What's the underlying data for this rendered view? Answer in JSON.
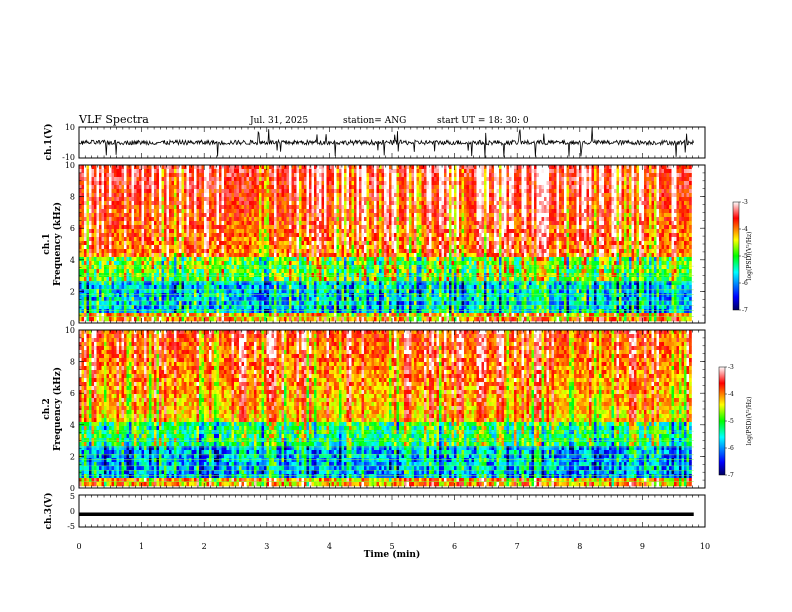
{
  "header": {
    "title": "VLF Spectra",
    "date": "Jul. 31, 2025",
    "station": "station= ANG",
    "start": "start UT = 18: 30: 0"
  },
  "chart_data": [
    {
      "type": "line",
      "name": "ch1-waveform",
      "ylabel": "ch.1(V)",
      "ylim": [
        -10,
        10
      ],
      "y_ticks": [
        "10",
        "-10"
      ],
      "baseline": 0,
      "description_values": "noisy voltage trace around 0 V with spikes to +/-10 V"
    },
    {
      "type": "heatmap",
      "name": "ch1-spectrogram",
      "ylabel_top": "ch.1",
      "ylabel": "Frequency (kHz)",
      "ylim": [
        0,
        10
      ],
      "y_ticks": [
        "0",
        "2",
        "4",
        "6",
        "8",
        "10"
      ],
      "colorbar": {
        "label": "log(PSD)(V²/Hz)",
        "range": [
          -7,
          -3
        ],
        "ticks": [
          "-3",
          "-4",
          "-5",
          "-6",
          "-7"
        ]
      }
    },
    {
      "type": "heatmap",
      "name": "ch2-spectrogram",
      "ylabel_top": "ch.2",
      "ylabel": "Frequency (kHz)",
      "ylim": [
        0,
        10
      ],
      "y_ticks": [
        "0",
        "2",
        "4",
        "6",
        "8",
        "10"
      ],
      "colorbar": {
        "label": "log(PSD)(V²/Hz)",
        "range": [
          -7,
          -3
        ],
        "ticks": [
          "-3",
          "-4",
          "-5",
          "-6",
          "-7"
        ]
      }
    },
    {
      "type": "line",
      "name": "ch3-waveform",
      "ylabel": "ch.3(V)",
      "ylim": [
        -5,
        5
      ],
      "y_ticks": [
        "5",
        "0",
        "-5"
      ],
      "constant_value": -1
    }
  ],
  "x_axis": {
    "label": "Time (min)",
    "range": [
      0,
      10
    ],
    "ticks": [
      "0",
      "1",
      "2",
      "3",
      "4",
      "5",
      "6",
      "7",
      "8",
      "9",
      "10"
    ],
    "data_end": 9.82
  },
  "colors": {
    "scale": [
      "#000060",
      "#0000ff",
      "#00ffff",
      "#00ff00",
      "#ffff00",
      "#ff0000",
      "#ffffff"
    ]
  }
}
